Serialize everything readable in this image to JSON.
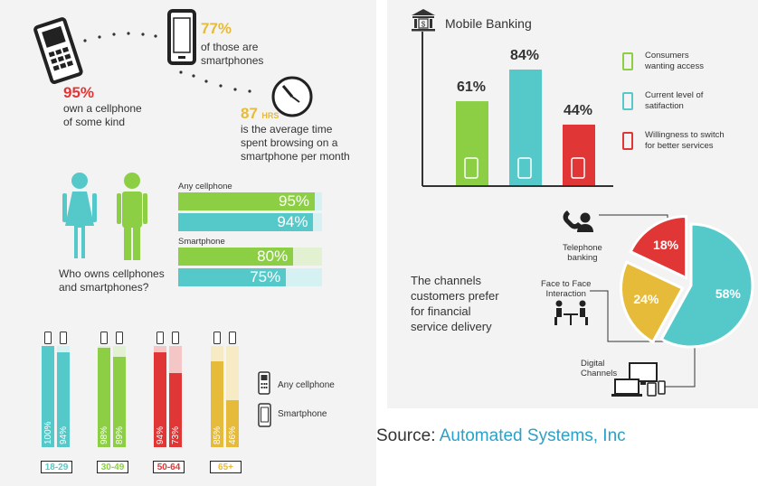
{
  "colors": {
    "teal": "#55c9c9",
    "green": "#8ccf45",
    "red": "#e03636",
    "yellow": "#e6bb3a",
    "teal_light": "#d6f1f1",
    "green_light": "#e2f1d2",
    "red_light": "#f4c6c6",
    "yellow_light": "#f6ebc4"
  },
  "left": {
    "stat1": {
      "value": "95%",
      "text1": "own a cellphone",
      "text2": "of some kind"
    },
    "stat2": {
      "value": "77%",
      "text1": "of those are",
      "text2": "smartphones"
    },
    "stat3": {
      "value": "87",
      "unit": "HRS",
      "text1": "is the average time",
      "text2": "spent browsing on a",
      "text3": "smartphone per month"
    },
    "gender": {
      "question1": "Who owns cellphones",
      "question2": "and smartphones?",
      "any_label": "Any cellphone",
      "smart_label": "Smartphone",
      "bars": [
        {
          "group": "Any cellphone",
          "gender": "female",
          "value": 95,
          "label": "95%"
        },
        {
          "group": "Any cellphone",
          "gender": "male",
          "value": 94,
          "label": "94%"
        },
        {
          "group": "Smartphone",
          "gender": "female",
          "value": 80,
          "label": "80%"
        },
        {
          "group": "Smartphone",
          "gender": "male",
          "value": 75,
          "label": "75%"
        }
      ]
    },
    "age_chart": {
      "legend_any": "Any cellphone",
      "legend_smart": "Smartphone",
      "groups": [
        {
          "age": "18-29",
          "any": 100,
          "smart": 94,
          "any_label": "100%",
          "smart_label": "94%",
          "color": "#55c9c9",
          "light": "#d6f1f1"
        },
        {
          "age": "30-49",
          "any": 98,
          "smart": 89,
          "any_label": "98%",
          "smart_label": "89%",
          "color": "#8ccf45",
          "light": "#e2f1d2"
        },
        {
          "age": "50-64",
          "any": 94,
          "smart": 73,
          "any_label": "94%",
          "smart_label": "73%",
          "color": "#e03636",
          "light": "#f4c6c6"
        },
        {
          "age": "65+",
          "any": 85,
          "smart": 46,
          "any_label": "85%",
          "smart_label": "46%",
          "color": "#e6bb3a",
          "light": "#f6ebc4"
        }
      ]
    }
  },
  "right": {
    "bank_title": "Mobile Banking",
    "bank_bars": [
      {
        "label": "61%",
        "value": 61,
        "color": "#8ccf45",
        "icon": "phone-hand-icon"
      },
      {
        "label": "84%",
        "value": 84,
        "color": "#55c9c9",
        "icon": "thumbs-up-icon"
      },
      {
        "label": "44%",
        "value": 44,
        "color": "#e03636",
        "icon": "exit-arrow-icon"
      }
    ],
    "bank_legend": [
      {
        "l1": "Consumers",
        "l2": "wanting access",
        "icon": "phone-hand-icon",
        "color": "#8ccf45"
      },
      {
        "l1": "Current level of",
        "l2": "satifaction",
        "icon": "thumbs-up-icon",
        "color": "#55c9c9"
      },
      {
        "l1": "Willingness to switch",
        "l2": "for better services",
        "icon": "exit-arrow-icon",
        "color": "#e03636"
      }
    ],
    "channels_l1": "The channels",
    "channels_l2": "customers prefer",
    "channels_l3": "for financial",
    "channels_l4": "service delivery",
    "pie": [
      {
        "label": "58%",
        "value": 58,
        "color": "#55c9c9",
        "name1": "Digital",
        "name2": "Channels"
      },
      {
        "label": "24%",
        "value": 24,
        "color": "#e6bb3a",
        "name1": "Face to Face",
        "name2": "Interaction"
      },
      {
        "label": "18%",
        "value": 18,
        "color": "#e03636",
        "name1": "Telephone",
        "name2": "banking"
      }
    ]
  },
  "source_prefix": "Source: ",
  "source_name": "Automated Systems, Inc"
}
